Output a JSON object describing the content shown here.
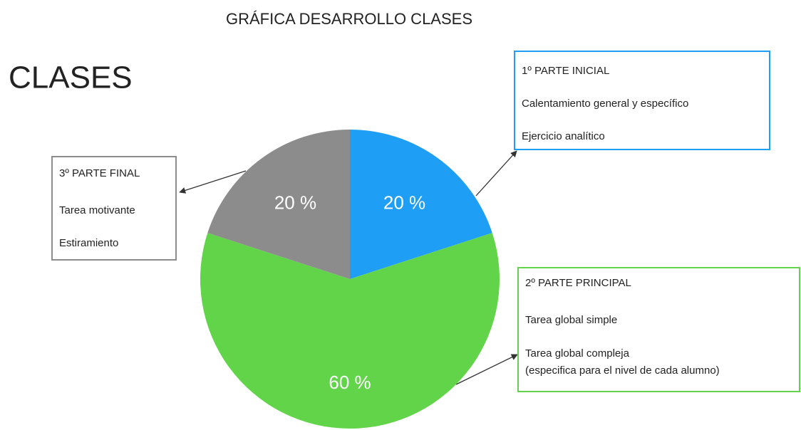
{
  "chart_data": {
    "type": "pie",
    "title": "GRÁFICA DESARROLLO CLASES",
    "heading": "CLASES",
    "categories": [
      "1º PARTE INICIAL",
      "2º PARTE PRINCIPAL",
      "3º PARTE FINAL"
    ],
    "values": [
      20,
      60,
      20
    ],
    "value_labels": [
      "20 %",
      "60 %",
      "20 %"
    ],
    "colors": [
      "#1e9ef5",
      "#62d44a",
      "#8c8c8c"
    ],
    "details": [
      [
        [
          "Calentamiento general y específico"
        ],
        [
          "Ejercicio analítico"
        ]
      ],
      [
        [
          "Tarea global simple"
        ],
        [
          "Tarea global compleja",
          "(especifica para el nivel de cada alumno)"
        ]
      ],
      [
        [
          "Tarea motivante"
        ],
        [
          "Estiramiento"
        ]
      ]
    ]
  }
}
